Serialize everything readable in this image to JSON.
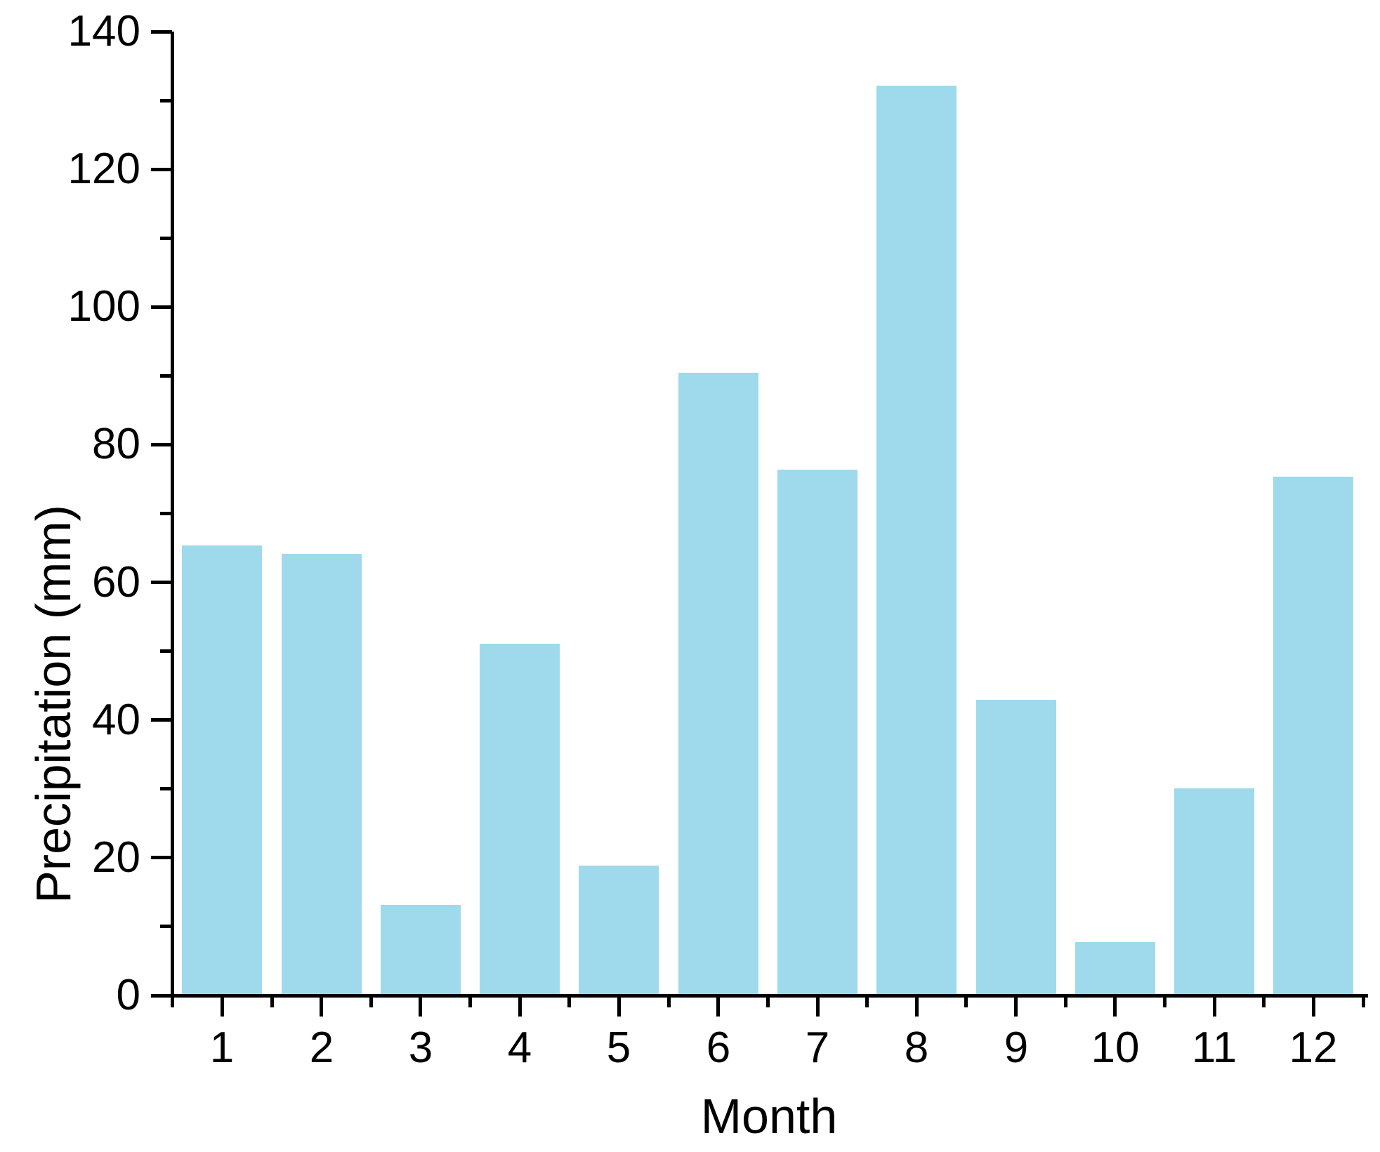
{
  "chart_data": {
    "type": "bar",
    "title": "",
    "xlabel": "Month",
    "ylabel": "Precipitation (mm)",
    "categories": [
      "1",
      "2",
      "3",
      "4",
      "5",
      "6",
      "7",
      "8",
      "9",
      "10",
      "11",
      "12"
    ],
    "values": [
      65.4,
      64.1,
      13.2,
      51.1,
      18.9,
      90.4,
      76.4,
      132.1,
      42.9,
      7.7,
      30.1,
      75.4
    ],
    "ylim": [
      0,
      140
    ],
    "yticks_major": [
      0,
      20,
      40,
      60,
      80,
      100,
      120,
      140
    ],
    "yticks_minor": [
      10,
      30,
      50,
      70,
      90,
      110,
      130
    ],
    "x_minor_ticks_between_categories": true,
    "grid": false,
    "legend_position": "none",
    "bar_color": "#9ed9ec",
    "axis_color": "#000000",
    "text_color": "#000000",
    "background_color": "#ffffff"
  }
}
